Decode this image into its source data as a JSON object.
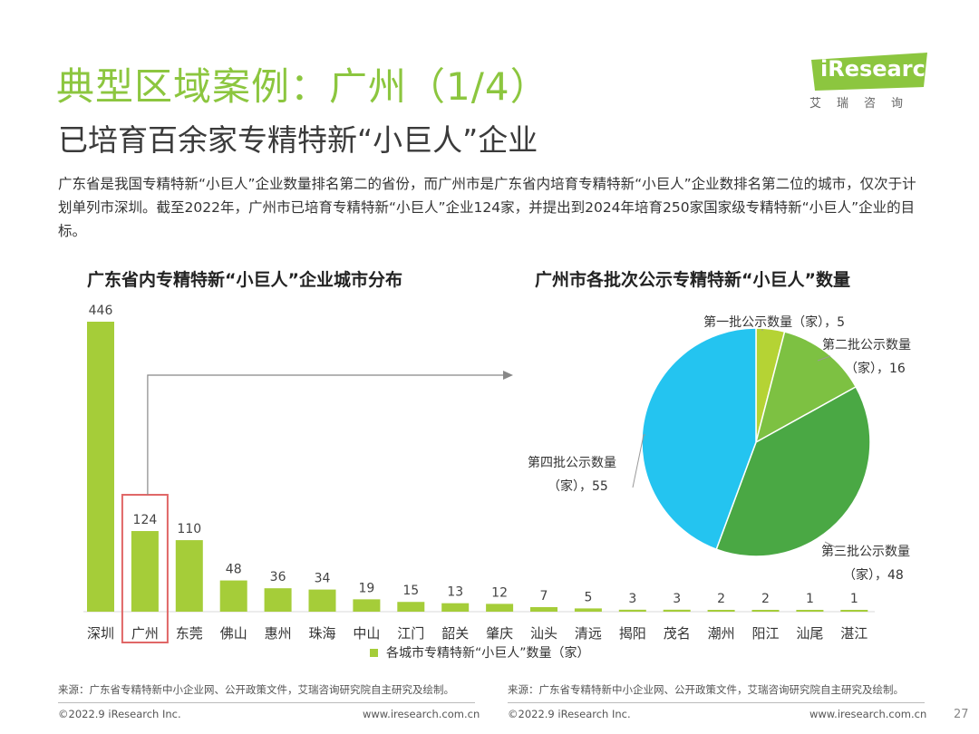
{
  "header": {
    "title": "典型区域案例：广州（1/4）",
    "subtitle": "已培育百余家专精特新“小巨人”企业",
    "intro": "广东省是我国专精特新“小巨人”企业数量排名第二的省份，而广州市是广东省内培育专精特新“小巨人”企业数排名第二位的城市，仅次于计划单列市深圳。截至2022年，广州市已培育专精特新“小巨人”企业124家，并提出到2024年培育250家国家级专精特新“小巨人”企业的目标。",
    "logo_text": "iResearch",
    "logo_sub": "艾瑞咨询",
    "brand_color": "#8cc63f"
  },
  "chart_data": [
    {
      "type": "bar",
      "title": "广东省内专精特新“小巨人”企业城市分布",
      "categories": [
        "深圳",
        "广州",
        "东莞",
        "佛山",
        "惠州",
        "珠海",
        "中山",
        "江门",
        "韶关",
        "肇庆",
        "汕头",
        "清远",
        "揭阳",
        "茂名",
        "潮州",
        "阳江",
        "汕尾",
        "湛江"
      ],
      "series": [
        {
          "name": "各城市专精特新“小巨人”数量（家）",
          "values": [
            446,
            124,
            110,
            48,
            36,
            34,
            19,
            15,
            13,
            12,
            7,
            5,
            3,
            3,
            2,
            2,
            1,
            1
          ],
          "color": "#a5cd39"
        }
      ],
      "highlight": "广州",
      "highlight_color": "#e06666",
      "legend": "bottom"
    },
    {
      "type": "pie",
      "title": "广州市各批次公示专精特新“小巨人”数量",
      "slices": [
        {
          "label": "第一批公示数量（家）",
          "value": 5,
          "display": "第一批公示数量（家），5",
          "color": "#b5d334"
        },
        {
          "label": "第二批公示数量（家）",
          "value": 16,
          "display_line1": "第二批公示数量",
          "display_line2": "（家），16",
          "color": "#7dc142"
        },
        {
          "label": "第三批公示数量（家）",
          "value": 48,
          "display_line1": "第三批公示数量",
          "display_line2": "（家），48",
          "color": "#4aa844"
        },
        {
          "label": "第四批公示数量（家）",
          "value": 55,
          "display_line1": "第四批公示数量",
          "display_line2": "（家），55",
          "color": "#24c4f0"
        }
      ]
    }
  ],
  "sources": {
    "left": "来源：广东省专精特新中小企业网、公开政策文件，艾瑞咨询研究院自主研究及绘制。",
    "right": "来源：广东省专精特新中小企业网、公开政策文件，艾瑞咨询研究院自主研究及绘制。"
  },
  "footer": {
    "copyright_left": "©2022.9 iResearch Inc.",
    "url_left": "www.iresearch.com.cn",
    "copyright_right": "©2022.9 iResearch Inc.",
    "url_right": "www.iresearch.com.cn",
    "page_number": "27"
  }
}
